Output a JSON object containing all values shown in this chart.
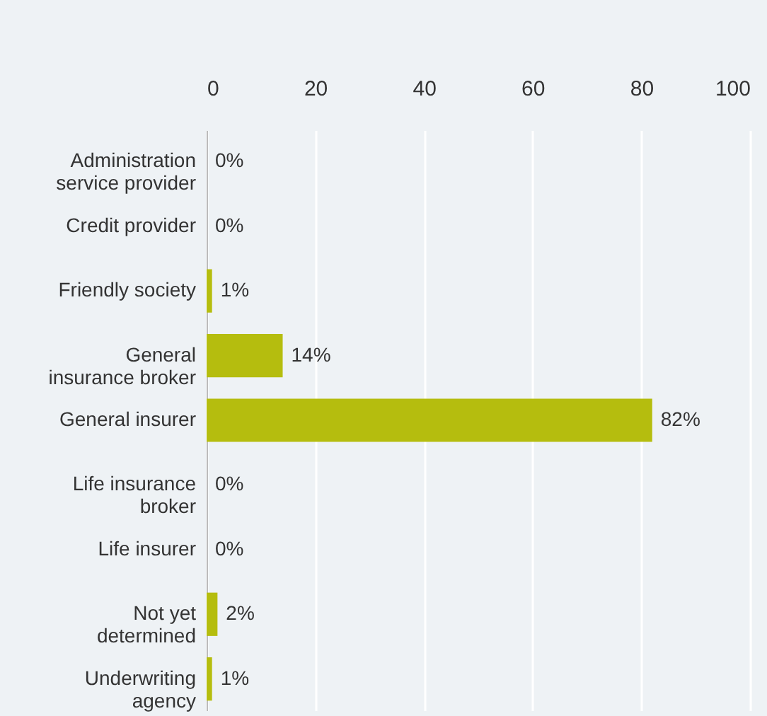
{
  "chart_data": {
    "type": "bar",
    "orientation": "horizontal",
    "categories": [
      "Administration service provider",
      "Credit provider",
      "Friendly society",
      "General insurance broker",
      "General insurer",
      "Life insurance broker",
      "Life insurer",
      "Not yet determined",
      "Underwriting agency"
    ],
    "values": [
      0,
      0,
      1,
      14,
      82,
      0,
      0,
      2,
      1
    ],
    "value_labels": [
      "0%",
      "0%",
      "1%",
      "14%",
      "82%",
      "0%",
      "0%",
      "2%",
      "1%"
    ],
    "color": "#b5bd0e",
    "xlim": [
      0,
      100
    ],
    "xticks": [
      0,
      20,
      40,
      60,
      80,
      100
    ],
    "grid": "x"
  }
}
